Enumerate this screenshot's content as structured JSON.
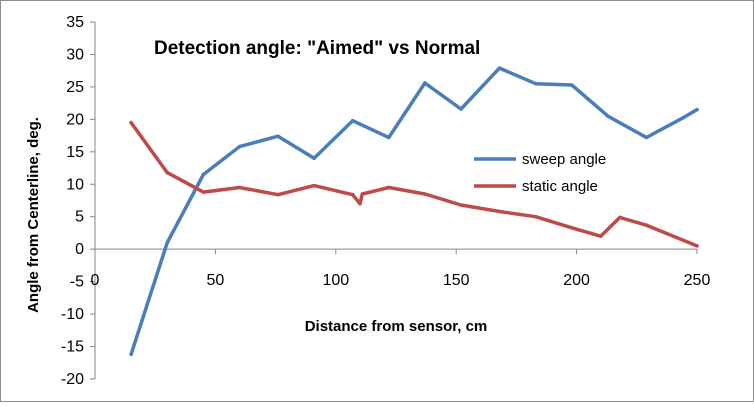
{
  "chart_data": {
    "type": "line",
    "title": "Detection angle: \"Aimed\" vs Normal",
    "xlabel": "Distance from sensor, cm",
    "ylabel": "Angle from Centerline, deg.",
    "xlim": [
      0,
      250
    ],
    "ylim": [
      -20,
      35
    ],
    "xticks": [
      "0",
      "50",
      "100",
      "150",
      "200",
      "250"
    ],
    "yticks": [
      "-20",
      "-15",
      "-10",
      "-5",
      "0",
      "5",
      "10",
      "15",
      "20",
      "25",
      "30",
      "35"
    ],
    "grid": false,
    "legend_position": "right",
    "series": [
      {
        "name": "sweep angle",
        "color": "#4a7ebb",
        "x": [
          15,
          30,
          45,
          60,
          76,
          91,
          107,
          122,
          137,
          152,
          168,
          183,
          198,
          213,
          229,
          244,
          250
        ],
        "y": [
          -16.2,
          1.0,
          11.5,
          15.8,
          17.4,
          14.0,
          19.8,
          17.2,
          25.6,
          21.6,
          27.9,
          25.5,
          25.3,
          20.5,
          17.2,
          20.2,
          21.5
        ]
      },
      {
        "name": "static angle",
        "color": "#be4b48",
        "x": [
          15,
          30,
          45,
          60,
          76,
          91,
          107,
          110,
          111,
          122,
          137,
          152,
          168,
          183,
          198,
          210,
          218,
          229,
          250
        ],
        "y": [
          19.5,
          11.8,
          8.8,
          9.5,
          8.4,
          9.8,
          8.4,
          7.0,
          8.5,
          9.5,
          8.5,
          6.8,
          5.8,
          5.0,
          3.3,
          2.0,
          4.9,
          3.7,
          0.5
        ]
      }
    ]
  }
}
